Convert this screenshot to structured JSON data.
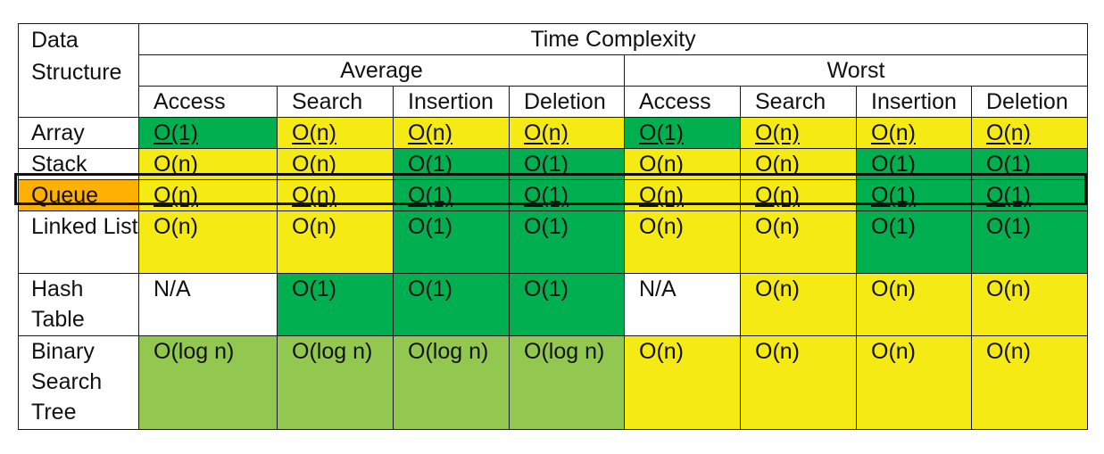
{
  "colors": {
    "const": "#00b050",
    "linear": "#f5ea14",
    "log": "#92c850",
    "na": "#ffffff",
    "highlight": "#ffb000"
  },
  "header": {
    "ds_label": "Data Structure",
    "time_complexity": "Time Complexity",
    "average": "Average",
    "worst": "Worst",
    "ops": [
      "Access",
      "Search",
      "Insertion",
      "Deletion",
      "Access",
      "Search",
      "Insertion",
      "Deletion"
    ]
  },
  "rows": [
    {
      "name": "Array",
      "highlight": false,
      "underline": true,
      "height": 1,
      "cells": [
        [
          "O(1)",
          "const"
        ],
        [
          "O(n)",
          "linear"
        ],
        [
          "O(n)",
          "linear"
        ],
        [
          "O(n)",
          "linear"
        ],
        [
          "O(1)",
          "const"
        ],
        [
          "O(n)",
          "linear"
        ],
        [
          "O(n)",
          "linear"
        ],
        [
          "O(n)",
          "linear"
        ]
      ]
    },
    {
      "name": "Stack",
      "highlight": false,
      "underline": true,
      "height": 1,
      "cells": [
        [
          "O(n)",
          "linear"
        ],
        [
          "O(n)",
          "linear"
        ],
        [
          "O(1)",
          "const"
        ],
        [
          "O(1)",
          "const"
        ],
        [
          "O(n)",
          "linear"
        ],
        [
          "O(n)",
          "linear"
        ],
        [
          "O(1)",
          "const"
        ],
        [
          "O(1)",
          "const"
        ]
      ]
    },
    {
      "name": "Queue",
      "highlight": true,
      "underline": true,
      "height": 1,
      "cells": [
        [
          "O(n)",
          "linear"
        ],
        [
          "O(n)",
          "linear"
        ],
        [
          "O(1)",
          "const"
        ],
        [
          "O(1)",
          "const"
        ],
        [
          "O(n)",
          "linear"
        ],
        [
          "O(n)",
          "linear"
        ],
        [
          "O(1)",
          "const"
        ],
        [
          "O(1)",
          "const"
        ]
      ]
    },
    {
      "name": "Linked List",
      "highlight": false,
      "underline": false,
      "height": 2,
      "cells": [
        [
          "O(n)",
          "linear"
        ],
        [
          "O(n)",
          "linear"
        ],
        [
          "O(1)",
          "const"
        ],
        [
          "O(1)",
          "const"
        ],
        [
          "O(n)",
          "linear"
        ],
        [
          "O(n)",
          "linear"
        ],
        [
          "O(1)",
          "const"
        ],
        [
          "O(1)",
          "const"
        ]
      ]
    },
    {
      "name": "Hash Table",
      "highlight": false,
      "underline": false,
      "height": 2,
      "cells": [
        [
          "N/A",
          "na"
        ],
        [
          "O(1)",
          "const"
        ],
        [
          "O(1)",
          "const"
        ],
        [
          "O(1)",
          "const"
        ],
        [
          "N/A",
          "na"
        ],
        [
          "O(n)",
          "linear"
        ],
        [
          "O(n)",
          "linear"
        ],
        [
          "O(n)",
          "linear"
        ]
      ]
    },
    {
      "name": "Binary Search Tree",
      "highlight": false,
      "underline": false,
      "height": 3,
      "cells": [
        [
          "O(log n)",
          "log"
        ],
        [
          "O(log n)",
          "log"
        ],
        [
          "O(log n)",
          "log"
        ],
        [
          "O(log n)",
          "log"
        ],
        [
          "O(n)",
          "linear"
        ],
        [
          "O(n)",
          "linear"
        ],
        [
          "O(n)",
          "linear"
        ],
        [
          "O(n)",
          "linear"
        ]
      ]
    }
  ]
}
